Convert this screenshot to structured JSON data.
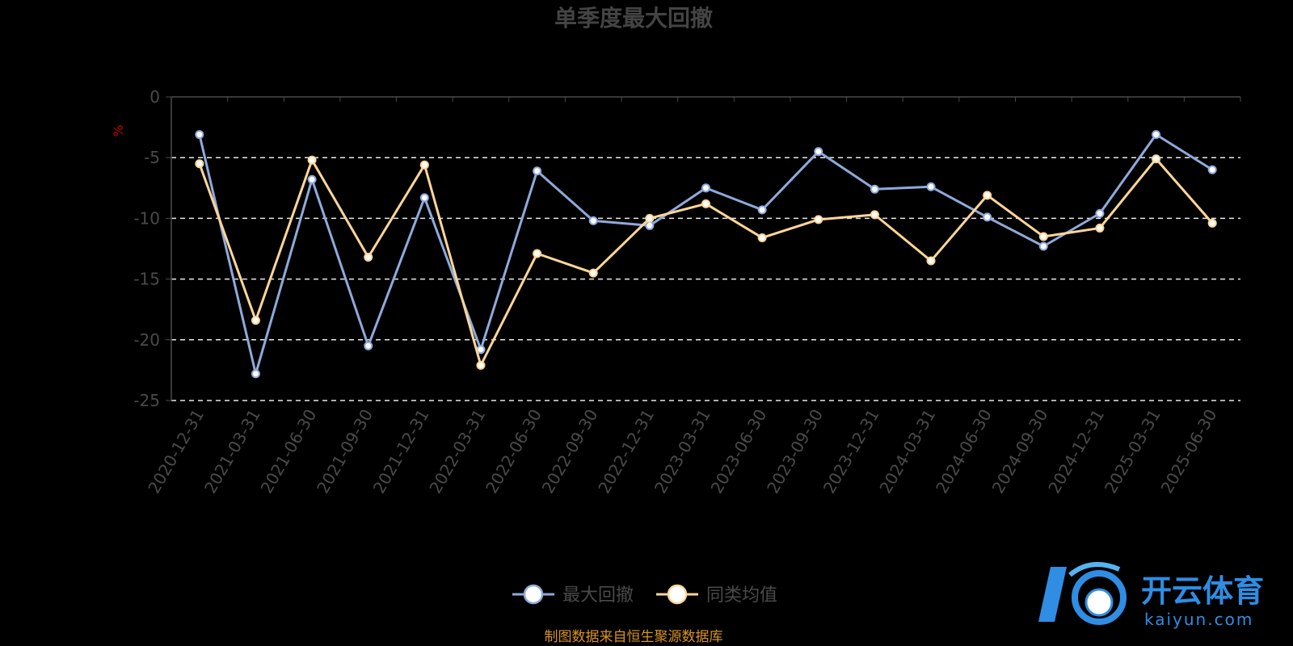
{
  "chart_data": {
    "type": "line",
    "title": "单季度最大回撤",
    "ylabel": "%",
    "ylim": [
      -25,
      0
    ],
    "yticks": [
      0,
      -5,
      -10,
      -15,
      -20,
      -25
    ],
    "grid": true,
    "legend_position": "bottom-center",
    "x": [
      "2020-12-31",
      "2021-03-31",
      "2021-06-30",
      "2021-09-30",
      "2021-12-31",
      "2022-03-31",
      "2022-06-30",
      "2022-09-30",
      "2022-12-31",
      "2023-03-31",
      "2023-06-30",
      "2023-09-30",
      "2023-12-31",
      "2024-03-31",
      "2024-06-30",
      "2024-09-30",
      "2024-12-31",
      "2025-03-31",
      "2025-06-30"
    ],
    "series": [
      {
        "name": "最大回撤",
        "color": "#8eaadb",
        "values": [
          -3.1,
          -22.8,
          -6.8,
          -20.5,
          -8.3,
          -20.8,
          -6.1,
          -10.2,
          -10.6,
          -7.5,
          -9.3,
          -4.5,
          -7.6,
          -7.4,
          -9.9,
          -12.3,
          -9.6,
          -3.1,
          -6.0
        ]
      },
      {
        "name": "同类均值",
        "color": "#ffd699",
        "values": [
          -5.5,
          -18.4,
          -5.2,
          -13.2,
          -5.6,
          -22.1,
          -12.9,
          -14.5,
          -10.0,
          -8.8,
          -11.6,
          -10.1,
          -9.7,
          -13.5,
          -8.1,
          -11.5,
          -10.8,
          -5.1,
          -10.4
        ]
      }
    ]
  },
  "source_note": "制图数据来自恒生聚源数据库",
  "watermark": {
    "cn": "开云体育",
    "en": "kaiyun.com"
  }
}
